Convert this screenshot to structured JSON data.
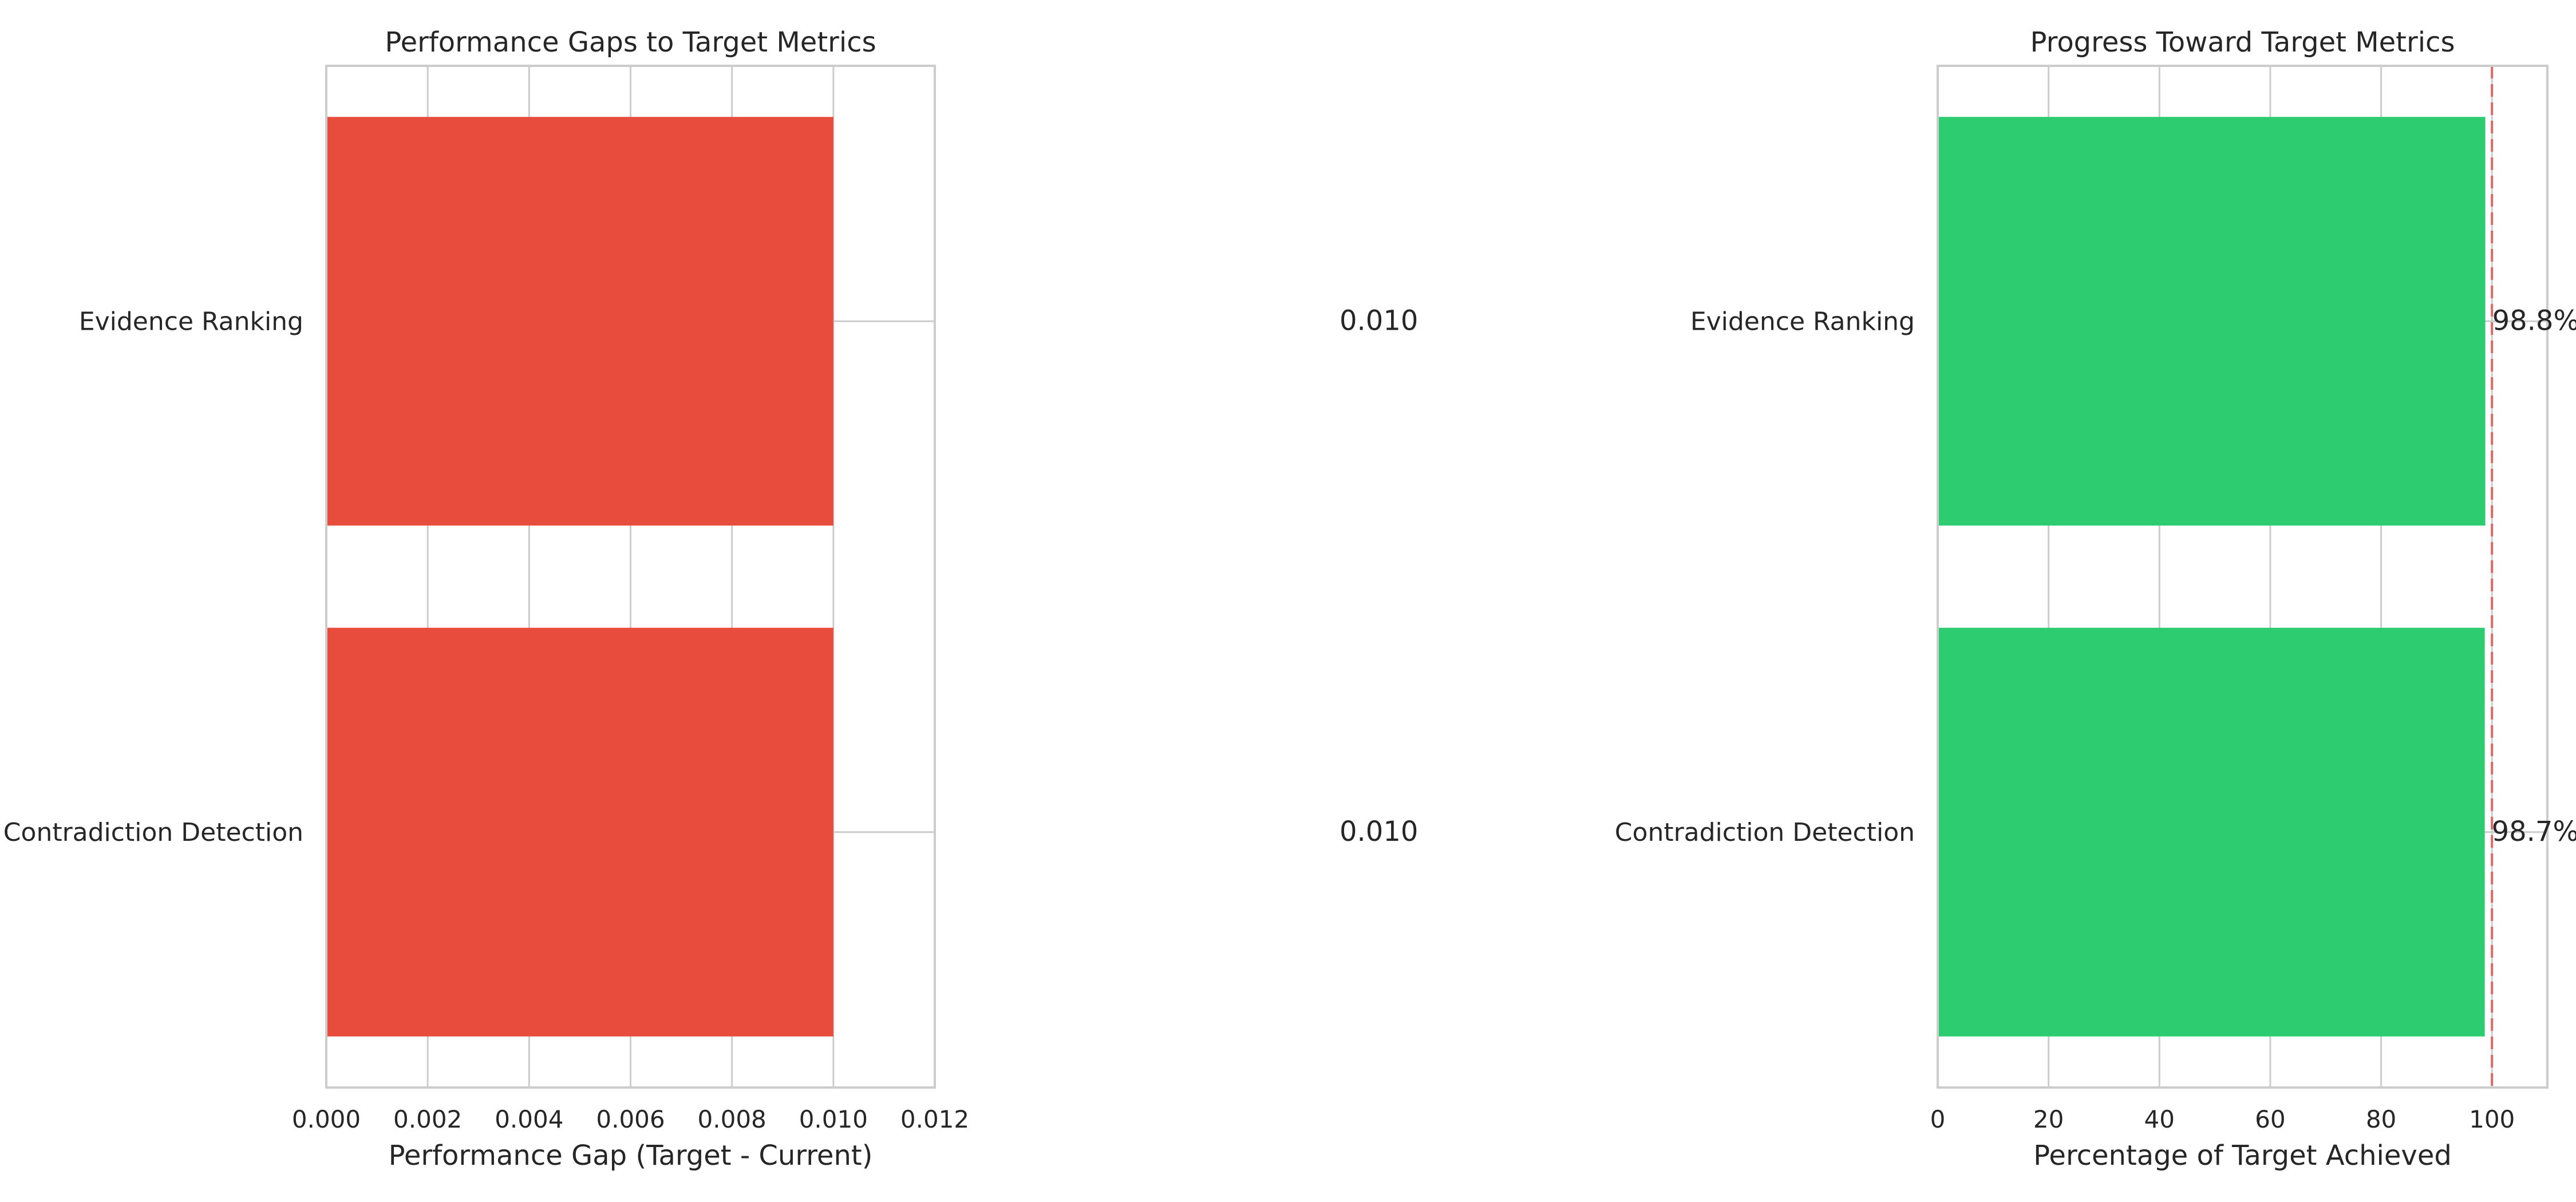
{
  "chart_data": [
    {
      "type": "bar",
      "orientation": "horizontal",
      "title": "Performance Gaps to Target Metrics",
      "xlabel": "Performance Gap (Target - Current)",
      "ylabel": "",
      "categories": [
        "Evidence Ranking",
        "Contradiction Detection"
      ],
      "values": [
        0.01,
        0.01
      ],
      "value_labels": [
        "0.010",
        "0.010"
      ],
      "xlim": [
        0,
        0.012
      ],
      "xticks": [
        0,
        0.002,
        0.004,
        0.006,
        0.008,
        0.01,
        0.012
      ],
      "xtick_labels": [
        "0.000",
        "0.002",
        "0.004",
        "0.006",
        "0.008",
        "0.010",
        "0.012"
      ],
      "bar_color": "#e74c3c",
      "grid": true
    },
    {
      "type": "bar",
      "orientation": "horizontal",
      "title": "Progress Toward Target Metrics",
      "xlabel": "Percentage of Target Achieved",
      "ylabel": "",
      "categories": [
        "Evidence Ranking",
        "Contradiction Detection"
      ],
      "values": [
        98.8,
        98.7
      ],
      "value_labels": [
        "98.8%",
        "98.7%"
      ],
      "xlim": [
        0,
        110
      ],
      "xticks": [
        0,
        20,
        40,
        60,
        80,
        100
      ],
      "xtick_labels": [
        "0",
        "20",
        "40",
        "60",
        "80",
        "100"
      ],
      "bar_color": "#2ecc71",
      "target_line": 100,
      "target_line_color": "#e06666",
      "grid": true
    }
  ]
}
